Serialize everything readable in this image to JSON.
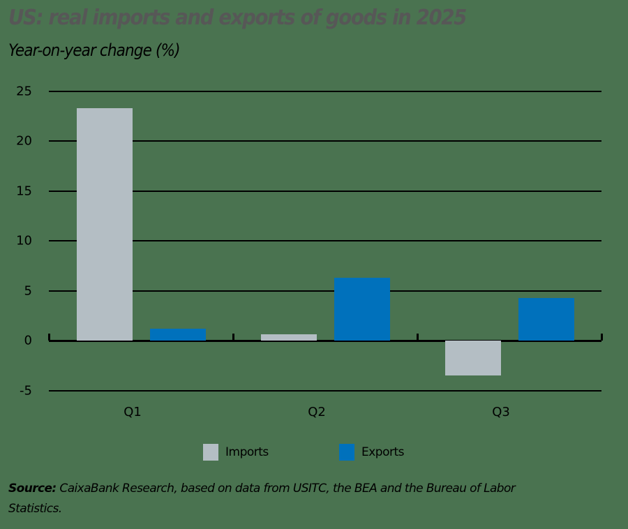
{
  "chart_data": {
    "type": "bar",
    "title": "US: real imports and exports of goods in 2025",
    "subtitle": "Year-on-year change (%)",
    "xlabel": "",
    "ylabel": "Year-on-year change (%)",
    "categories": [
      "Q1",
      "Q2",
      "Q3"
    ],
    "series": [
      {
        "name": "Imports",
        "color": "#b4bec4",
        "values": [
          23.3,
          0.6,
          -3.5
        ]
      },
      {
        "name": "Exports",
        "color": "#0071bc",
        "values": [
          1.2,
          6.3,
          4.3
        ]
      }
    ],
    "ylim": [
      -5,
      25
    ],
    "yticks": [
      25,
      20,
      15,
      10,
      5,
      0,
      -5
    ],
    "grid": true,
    "legend_position": "bottom"
  },
  "labels": {
    "title": "US: real imports and exports of goods in 2025",
    "subtitle": "Year-on-year change (%)",
    "yticks": [
      "25",
      "20",
      "15",
      "10",
      "5",
      "0",
      "-5"
    ],
    "categories": [
      "Q1",
      "Q2",
      "Q3"
    ],
    "legend": [
      "Imports",
      "Exports"
    ],
    "source_label": "Source:",
    "source_text": " CaixaBank Research, based on data from USITC, the BEA and the Bureau of Labor Statistics."
  }
}
